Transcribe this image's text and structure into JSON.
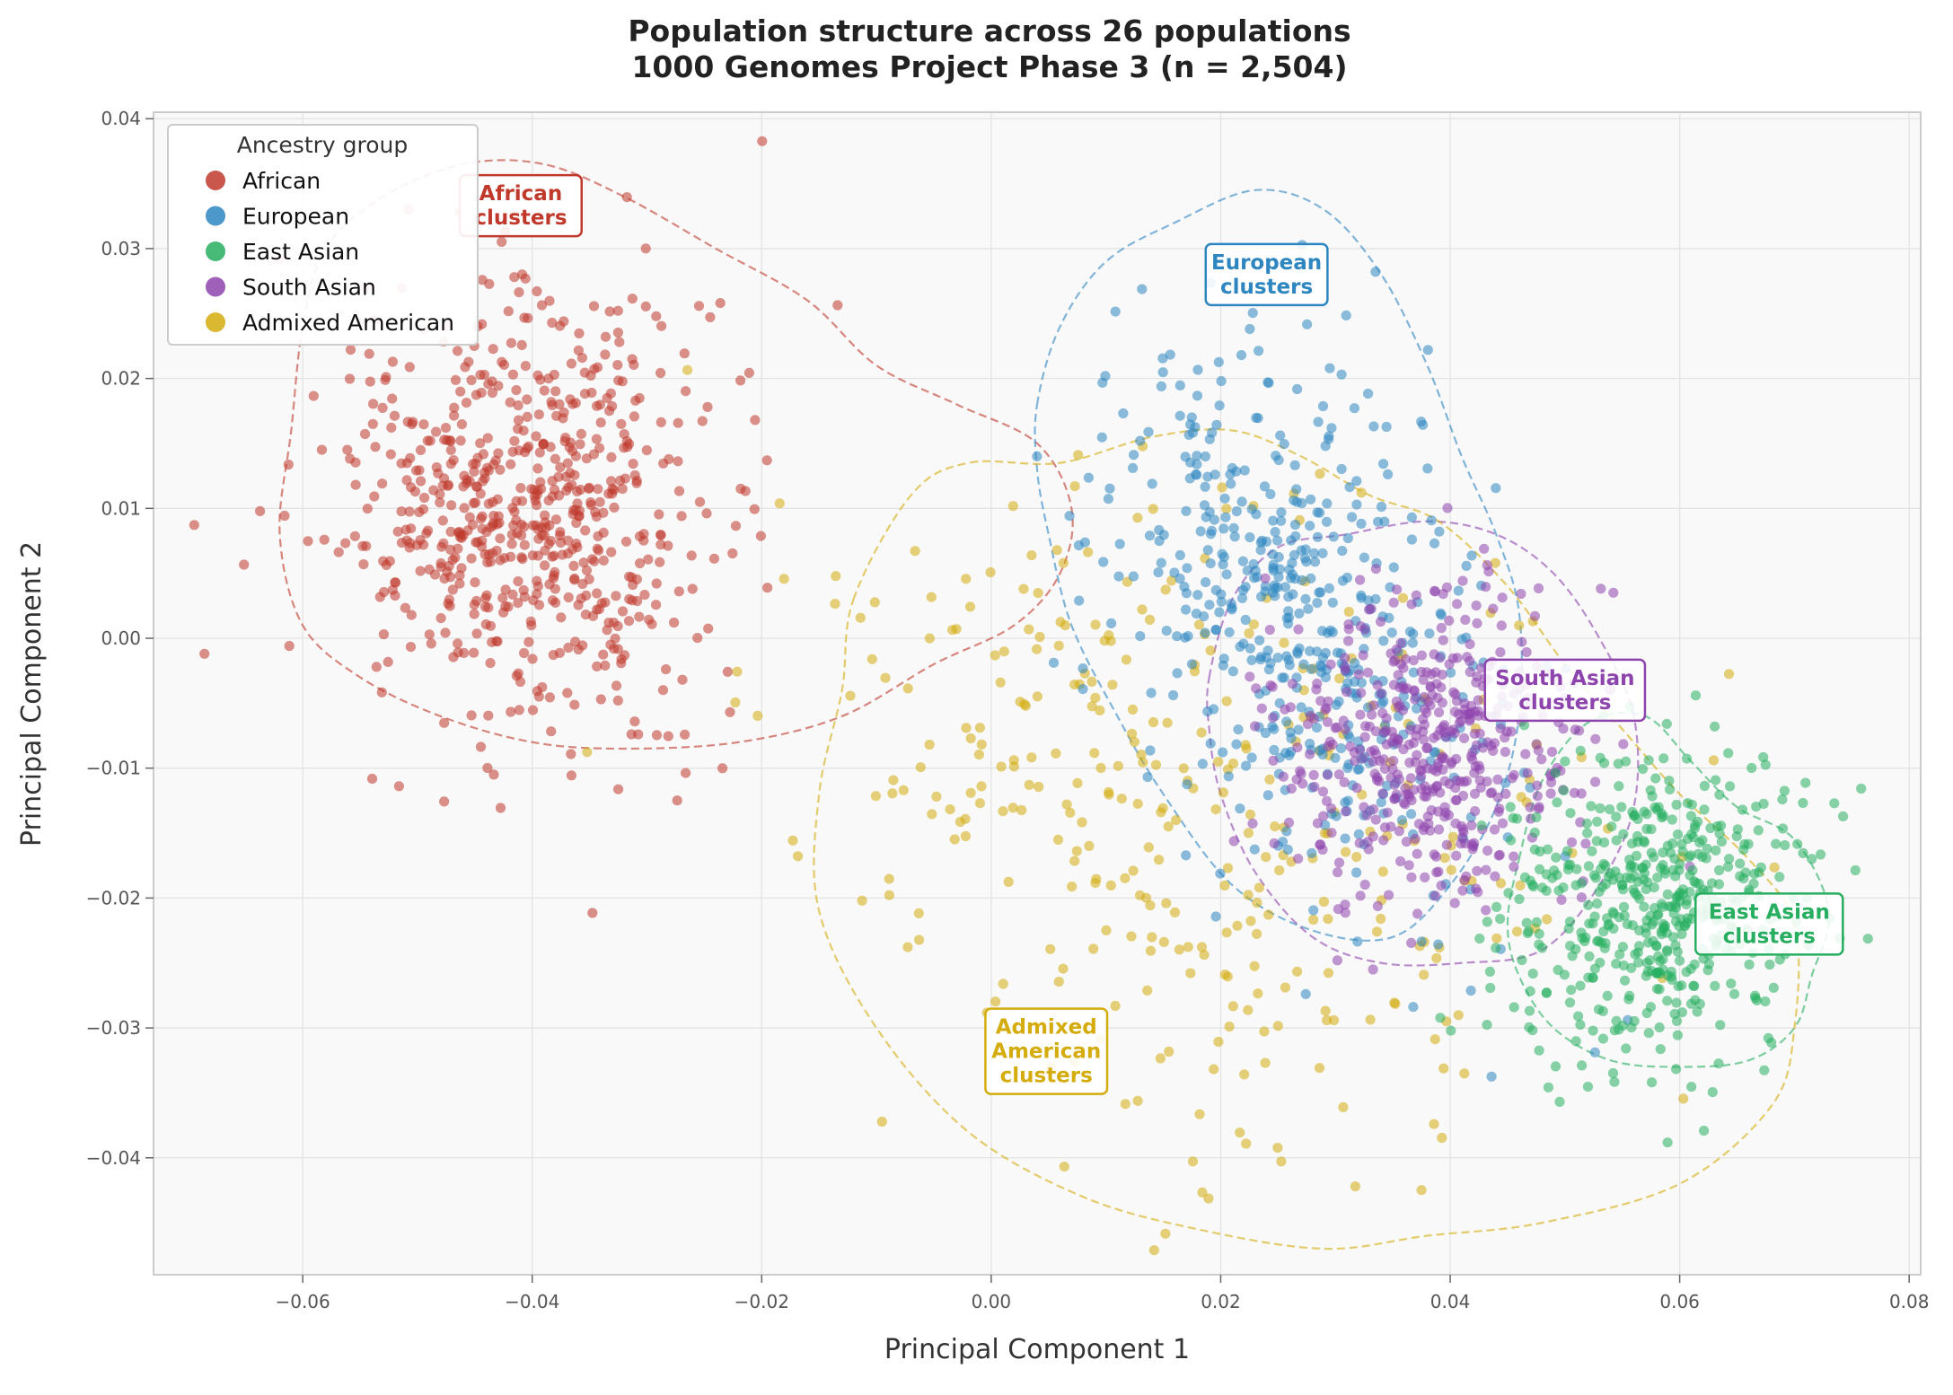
{
  "chart_data": {
    "type": "scatter",
    "title": "Population structure across 26 populations",
    "subtitle": "1000 Genomes Project Phase 3 (n = 2,504)",
    "xlabel": "Principal Component 1",
    "ylabel": "Principal Component 2",
    "xlim": [
      -0.073,
      0.081
    ],
    "ylim": [
      -0.049,
      0.0405
    ],
    "xticks": [
      -0.06,
      -0.04,
      -0.02,
      0.0,
      0.02,
      0.04,
      0.06,
      0.08
    ],
    "xtick_labels": [
      "−0.06",
      "−0.04",
      "−0.02",
      "0.00",
      "0.02",
      "0.04",
      "0.06",
      "0.08"
    ],
    "yticks": [
      0.04,
      0.03,
      0.02,
      0.01,
      0.0,
      -0.01,
      -0.02,
      -0.03,
      -0.04
    ],
    "ytick_labels": [
      "0.04",
      "0.03",
      "0.02",
      "0.01",
      "0.00",
      "−0.01",
      "−0.02",
      "−0.03",
      "−0.04"
    ],
    "grid": true,
    "legend": {
      "title": "Ancestry group",
      "position": "top-left",
      "entries": [
        "African",
        "European",
        "East Asian",
        "South Asian",
        "Admixed American"
      ]
    },
    "series": [
      {
        "name": "African",
        "color": "#c0392b",
        "n": 661,
        "center": [
          -0.04,
          0.0095
        ],
        "spread": [
          0.0085,
          0.0085
        ],
        "label": "African\nclusters",
        "label_at": [
          -0.041,
          0.0333
        ],
        "contour": [
          [
            -0.062,
            0.008
          ],
          [
            -0.061,
            0.016
          ],
          [
            -0.06,
            0.024
          ],
          [
            -0.058,
            0.03
          ],
          [
            -0.053,
            0.034
          ],
          [
            -0.046,
            0.0365
          ],
          [
            -0.039,
            0.0365
          ],
          [
            -0.032,
            0.034
          ],
          [
            -0.024,
            0.03
          ],
          [
            -0.016,
            0.026
          ],
          [
            -0.01,
            0.021
          ],
          [
            -0.003,
            0.018
          ],
          [
            0.004,
            0.015
          ],
          [
            0.007,
            0.01
          ],
          [
            0.006,
            0.005
          ],
          [
            0.002,
            0.001
          ],
          [
            -0.005,
            -0.002
          ],
          [
            -0.013,
            -0.006
          ],
          [
            -0.022,
            -0.008
          ],
          [
            -0.032,
            -0.0085
          ],
          [
            -0.04,
            -0.008
          ],
          [
            -0.048,
            -0.006
          ],
          [
            -0.055,
            -0.003
          ],
          [
            -0.06,
            0.001
          ]
        ]
      },
      {
        "name": "European",
        "color": "#2e86c1",
        "n": 503,
        "center": [
          0.027,
          0.002
        ],
        "spread": [
          0.0075,
          0.0105
        ],
        "label": "European\nclusters",
        "label_at": [
          0.024,
          0.028
        ],
        "contour": [
          [
            0.004,
            0.018
          ],
          [
            0.006,
            0.024
          ],
          [
            0.01,
            0.029
          ],
          [
            0.016,
            0.032
          ],
          [
            0.023,
            0.0345
          ],
          [
            0.029,
            0.033
          ],
          [
            0.034,
            0.028
          ],
          [
            0.038,
            0.021
          ],
          [
            0.041,
            0.014
          ],
          [
            0.044,
            0.008
          ],
          [
            0.046,
            0.002
          ],
          [
            0.046,
            -0.006
          ],
          [
            0.044,
            -0.013
          ],
          [
            0.04,
            -0.019
          ],
          [
            0.035,
            -0.023
          ],
          [
            0.028,
            -0.0225
          ],
          [
            0.021,
            -0.019
          ],
          [
            0.015,
            -0.012
          ],
          [
            0.011,
            -0.006
          ],
          [
            0.007,
            0.001
          ],
          [
            0.005,
            0.008
          ],
          [
            0.004,
            0.013
          ]
        ]
      },
      {
        "name": "East Asian",
        "color": "#27ae60",
        "n": 504,
        "center": [
          0.0585,
          -0.0205
        ],
        "spread": [
          0.0062,
          0.006
        ],
        "label": "East Asian\nclusters",
        "label_at": [
          0.0678,
          -0.022
        ],
        "contour": [
          [
            0.046,
            -0.017
          ],
          [
            0.048,
            -0.011
          ],
          [
            0.052,
            -0.0065
          ],
          [
            0.057,
            -0.006
          ],
          [
            0.061,
            -0.0095
          ],
          [
            0.065,
            -0.013
          ],
          [
            0.07,
            -0.0155
          ],
          [
            0.073,
            -0.021
          ],
          [
            0.0715,
            -0.026
          ],
          [
            0.07,
            -0.03
          ],
          [
            0.066,
            -0.0325
          ],
          [
            0.06,
            -0.033
          ],
          [
            0.054,
            -0.0325
          ],
          [
            0.049,
            -0.03
          ],
          [
            0.046,
            -0.026
          ],
          [
            0.045,
            -0.022
          ]
        ]
      },
      {
        "name": "South Asian",
        "color": "#8e44ad",
        "n": 489,
        "center": [
          0.0385,
          -0.008
        ],
        "spread": [
          0.0065,
          0.0062
        ],
        "label": "South Asian\nclusters",
        "label_at": [
          0.05,
          -0.004
        ],
        "contour": [
          [
            0.019,
            -0.003
          ],
          [
            0.021,
            0.003
          ],
          [
            0.025,
            0.007
          ],
          [
            0.031,
            0.008
          ],
          [
            0.038,
            0.009
          ],
          [
            0.044,
            0.008
          ],
          [
            0.049,
            0.005
          ],
          [
            0.053,
            0.0
          ],
          [
            0.056,
            -0.006
          ],
          [
            0.056,
            -0.013
          ],
          [
            0.053,
            -0.019
          ],
          [
            0.048,
            -0.024
          ],
          [
            0.041,
            -0.025
          ],
          [
            0.034,
            -0.025
          ],
          [
            0.028,
            -0.023
          ],
          [
            0.023,
            -0.018
          ],
          [
            0.02,
            -0.012
          ],
          [
            0.019,
            -0.007
          ]
        ]
      },
      {
        "name": "Admixed American",
        "color": "#d4ac0d",
        "n": 347,
        "center": [
          0.017,
          -0.013
        ],
        "spread": [
          0.017,
          0.0125
        ],
        "label": "Admixed\nAmerican\nclusters",
        "label_at": [
          0.0048,
          -0.0318
        ],
        "contour": [
          [
            -0.012,
            0.003
          ],
          [
            -0.007,
            0.011
          ],
          [
            -0.002,
            0.0135
          ],
          [
            0.006,
            0.0135
          ],
          [
            0.014,
            0.0155
          ],
          [
            0.021,
            0.016
          ],
          [
            0.027,
            0.014
          ],
          [
            0.033,
            0.011
          ],
          [
            0.039,
            0.009
          ],
          [
            0.045,
            0.004
          ],
          [
            0.05,
            -0.002
          ],
          [
            0.055,
            -0.007
          ],
          [
            0.06,
            -0.012
          ],
          [
            0.066,
            -0.017
          ],
          [
            0.07,
            -0.022
          ],
          [
            0.07,
            -0.03
          ],
          [
            0.068,
            -0.036
          ],
          [
            0.06,
            -0.042
          ],
          [
            0.048,
            -0.045
          ],
          [
            0.038,
            -0.046
          ],
          [
            0.029,
            -0.047
          ],
          [
            0.018,
            -0.0455
          ],
          [
            0.008,
            -0.043
          ],
          [
            -0.002,
            -0.038
          ],
          [
            -0.01,
            -0.03
          ],
          [
            -0.015,
            -0.021
          ],
          [
            -0.015,
            -0.012
          ],
          [
            -0.013,
            -0.004
          ]
        ]
      }
    ]
  }
}
